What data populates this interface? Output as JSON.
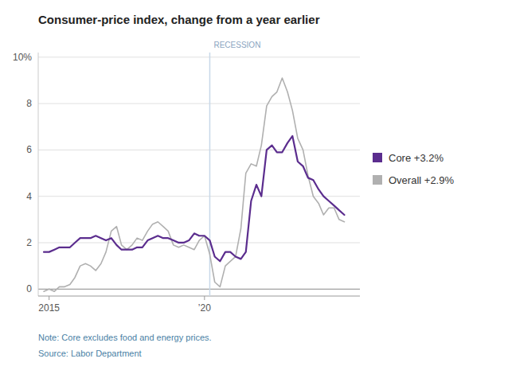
{
  "chart_data": {
    "type": "line",
    "title": "Consumer-price index, change from a year earlier",
    "note": "Note: Core excludes food and energy prices.",
    "source": "Source: Labor Department",
    "annotations": [
      {
        "text": "RECESSION",
        "x": 2020.17
      }
    ],
    "xlim": [
      2014.65,
      2025.0
    ],
    "xticks": [
      {
        "value": 2015,
        "label": "2015"
      },
      {
        "value": 2020,
        "label": "’20"
      }
    ],
    "ylim": [
      -0.3,
      10.2
    ],
    "yticks": [
      0,
      2,
      4,
      6,
      8,
      {
        "value": 10,
        "label": "10%"
      }
    ],
    "grid": true,
    "x": [
      2014.83,
      2015.0,
      2015.17,
      2015.33,
      2015.5,
      2015.67,
      2015.83,
      2016.0,
      2016.17,
      2016.33,
      2016.5,
      2016.67,
      2016.83,
      2017.0,
      2017.17,
      2017.33,
      2017.5,
      2017.67,
      2017.83,
      2018.0,
      2018.17,
      2018.33,
      2018.5,
      2018.67,
      2018.83,
      2019.0,
      2019.17,
      2019.33,
      2019.5,
      2019.67,
      2019.83,
      2020.0,
      2020.17,
      2020.33,
      2020.5,
      2020.67,
      2020.83,
      2021.0,
      2021.17,
      2021.33,
      2021.5,
      2021.67,
      2021.83,
      2022.0,
      2022.17,
      2022.33,
      2022.5,
      2022.67,
      2022.83,
      2023.0,
      2023.17,
      2023.33,
      2023.5,
      2023.67,
      2023.83,
      2024.0,
      2024.17,
      2024.33,
      2024.5
    ],
    "series": [
      {
        "name": "Core +3.2%",
        "color": "#5b2d8e",
        "values": [
          1.6,
          1.6,
          1.7,
          1.8,
          1.8,
          1.8,
          2.0,
          2.2,
          2.2,
          2.2,
          2.3,
          2.2,
          2.1,
          2.2,
          1.9,
          1.7,
          1.7,
          1.7,
          1.8,
          1.8,
          2.1,
          2.2,
          2.3,
          2.2,
          2.2,
          2.1,
          2.0,
          2.0,
          2.1,
          2.4,
          2.3,
          2.3,
          2.1,
          1.4,
          1.2,
          1.6,
          1.6,
          1.4,
          1.3,
          1.6,
          3.8,
          4.5,
          4.0,
          6.0,
          6.2,
          5.9,
          5.9,
          6.3,
          6.6,
          5.5,
          5.3,
          4.8,
          4.7,
          4.3,
          4.0,
          3.8,
          3.6,
          3.4,
          3.2
        ]
      },
      {
        "name": "Overall +2.9%",
        "color": "#b0b0b0",
        "values": [
          -0.1,
          0.0,
          -0.1,
          0.1,
          0.1,
          0.2,
          0.5,
          1.0,
          1.1,
          1.0,
          0.8,
          1.1,
          1.6,
          2.5,
          2.7,
          1.9,
          1.7,
          1.9,
          2.2,
          2.1,
          2.5,
          2.8,
          2.9,
          2.7,
          2.5,
          1.9,
          1.8,
          1.9,
          1.8,
          1.7,
          2.1,
          2.3,
          1.5,
          0.3,
          0.1,
          1.0,
          1.2,
          1.4,
          2.6,
          5.0,
          5.4,
          5.3,
          6.2,
          7.9,
          8.3,
          8.5,
          9.1,
          8.5,
          7.7,
          6.5,
          6.0,
          4.9,
          4.0,
          3.7,
          3.2,
          3.5,
          3.5,
          3.0,
          2.9
        ]
      }
    ]
  }
}
